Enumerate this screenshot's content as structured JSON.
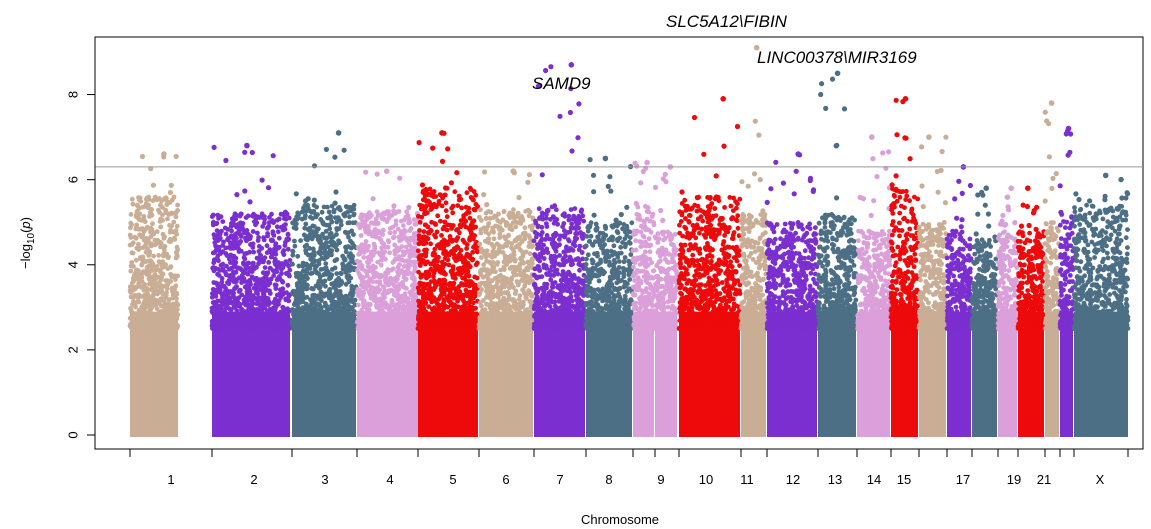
{
  "chart_data": {
    "type": "scatter",
    "subtype": "manhattan",
    "title": "",
    "xlabel": "Chromosome",
    "ylabel": "-log10(p)",
    "ylim": [
      0,
      9.5
    ],
    "yticks": [
      0,
      2,
      4,
      6,
      8
    ],
    "significance_threshold": 6.3,
    "grid": false,
    "colors": {
      "tan": "#c9ad94",
      "purple": "#7b2fd0",
      "slate": "#4c6f86",
      "pink": "#db9fd9",
      "red": "#ee0a0a",
      "threshold_line": "#999999"
    },
    "chromosomes": [
      {
        "label": "1",
        "show_label": true,
        "color": "tan",
        "density_max": 5.6,
        "peak": 6.6
      },
      {
        "label": "2",
        "show_label": true,
        "color": "purple",
        "density_max": 5.2,
        "peak": 6.8
      },
      {
        "label": "3",
        "show_label": true,
        "color": "slate",
        "density_max": 5.4,
        "peak": 7.1
      },
      {
        "label": "4",
        "show_label": true,
        "color": "pink",
        "density_max": 5.3,
        "peak": 6.2
      },
      {
        "label": "5",
        "show_label": true,
        "color": "red",
        "density_max": 5.8,
        "peak": 7.1
      },
      {
        "label": "6",
        "show_label": true,
        "color": "tan",
        "density_max": 5.3,
        "peak": 6.2
      },
      {
        "label": "7",
        "show_label": true,
        "color": "purple",
        "density_max": 5.4,
        "peak": 8.7
      },
      {
        "label": "8",
        "show_label": true,
        "color": "slate",
        "density_max": 5.0,
        "peak": 6.5
      },
      {
        "label": "",
        "show_label": false,
        "color": "pink",
        "density_max": 5.4,
        "peak": 6.4
      },
      {
        "label": "9",
        "show_label": true,
        "color": "pink",
        "density_max": 4.8,
        "peak": 6.3
      },
      {
        "label": "10",
        "show_label": true,
        "color": "red",
        "density_max": 5.6,
        "peak": 7.9
      },
      {
        "label": "11",
        "show_label": true,
        "color": "tan",
        "density_max": 5.2,
        "peak": 9.1
      },
      {
        "label": "12",
        "show_label": true,
        "color": "purple",
        "density_max": 5.0,
        "peak": 6.6
      },
      {
        "label": "13",
        "show_label": true,
        "color": "slate",
        "density_max": 5.2,
        "peak": 8.5
      },
      {
        "label": "14",
        "show_label": true,
        "color": "pink",
        "density_max": 4.8,
        "peak": 7.0
      },
      {
        "label": "15",
        "show_label": true,
        "color": "red",
        "density_max": 5.8,
        "peak": 7.9
      },
      {
        "label": "",
        "show_label": false,
        "color": "tan",
        "density_max": 5.0,
        "peak": 7.0
      },
      {
        "label": "17",
        "show_label": true,
        "color": "purple",
        "density_max": 4.8,
        "peak": 6.3
      },
      {
        "label": "",
        "show_label": false,
        "color": "slate",
        "density_max": 4.6,
        "peak": 5.8
      },
      {
        "label": "19",
        "show_label": true,
        "color": "pink",
        "density_max": 4.8,
        "peak": 5.8
      },
      {
        "label": "",
        "show_label": false,
        "color": "red",
        "density_max": 4.8,
        "peak": 5.8
      },
      {
        "label": "21",
        "show_label": true,
        "color": "tan",
        "density_max": 5.0,
        "peak": 7.8
      },
      {
        "label": "",
        "show_label": false,
        "color": "purple",
        "density_max": 5.2,
        "peak": 7.2
      },
      {
        "label": "X",
        "show_label": true,
        "color": "slate",
        "density_max": 5.4,
        "peak": 6.1
      }
    ],
    "annotations": [
      {
        "text": "SLC5A12\\FIBIN",
        "chromosome": "11"
      },
      {
        "text": "LINC00378\\MIR3169",
        "chromosome": "13"
      },
      {
        "text": "SAMD9",
        "chromosome": "7"
      }
    ]
  }
}
